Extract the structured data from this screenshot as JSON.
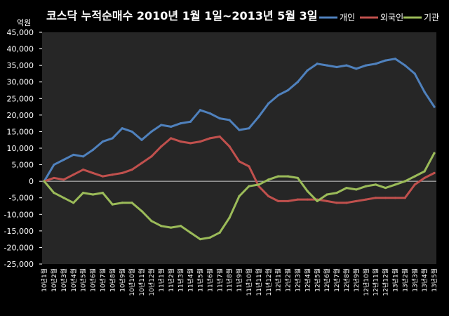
{
  "chart_data": {
    "type": "line",
    "title": "코스닥  누적순매수 2010년 1월 1일~2013년 5월 3일",
    "ylabel": "억원",
    "xlabel": "",
    "ylim": [
      -25000,
      45000
    ],
    "yticks": [
      -25000,
      -20000,
      -15000,
      -10000,
      -5000,
      0,
      5000,
      10000,
      15000,
      20000,
      25000,
      30000,
      35000,
      40000,
      45000
    ],
    "ytick_labels": [
      "-25,000",
      "-20,000",
      "-15,000",
      "-10,000",
      "-5,000",
      "0",
      "5,000",
      "10,000",
      "15,000",
      "20,000",
      "25,000",
      "30,000",
      "35,000",
      "40,000",
      "45,000"
    ],
    "legend_position": "top-right",
    "grid": false,
    "background": "#000000",
    "categories": [
      "10년1월",
      "10년2월",
      "10년3월",
      "10년4월",
      "10년5월",
      "10년6월",
      "10년7월",
      "10년8월",
      "10년9월",
      "10년10월",
      "10년11월",
      "10년12월",
      "11년1월",
      "11년2월",
      "11년3월",
      "11년4월",
      "11년5월",
      "11년6월",
      "11년7월",
      "11년8월",
      "11년9월",
      "11년10월",
      "11년11월",
      "11년12월",
      "12년1월",
      "12년2월",
      "12년3월",
      "12년4월",
      "12년5월",
      "12년6월",
      "12년7월",
      "12년8월",
      "12년9월",
      "12년10월",
      "12년11월",
      "12년12월",
      "13년1월",
      "13년2월",
      "13년3월",
      "13년4월",
      "13년5월"
    ],
    "series": [
      {
        "name": "개인",
        "color": "#4F81BD",
        "values": [
          0,
          5000,
          6500,
          8000,
          7500,
          9500,
          12000,
          13000,
          16000,
          15000,
          12500,
          15000,
          17000,
          16500,
          17500,
          18000,
          21500,
          20500,
          19000,
          18500,
          15500,
          16000,
          19500,
          23500,
          26000,
          27500,
          30000,
          33500,
          35500,
          35000,
          34500,
          35000,
          34000,
          35000,
          35500,
          36500,
          37000,
          35000,
          32500,
          27000,
          22500
        ]
      },
      {
        "name": "외국인",
        "color": "#C0504D",
        "values": [
          0,
          1000,
          500,
          2000,
          3500,
          2500,
          1500,
          2000,
          2500,
          3500,
          5500,
          7500,
          10500,
          13000,
          12000,
          11500,
          12000,
          13000,
          13500,
          10500,
          6000,
          4500,
          -1500,
          -4500,
          -6000,
          -6000,
          -5500,
          -5500,
          -5500,
          -6000,
          -6500,
          -6500,
          -6000,
          -5500,
          -5000,
          -5000,
          -5000,
          -5000,
          -1000,
          1000,
          2500
        ]
      },
      {
        "name": "기관",
        "color": "#9BBB59",
        "values": [
          0,
          -3500,
          -5000,
          -6500,
          -3500,
          -4000,
          -3500,
          -7000,
          -6500,
          -6500,
          -9000,
          -12000,
          -13500,
          -14000,
          -13500,
          -15500,
          -17500,
          -17000,
          -15500,
          -11000,
          -4500,
          -1500,
          -1000,
          500,
          1500,
          1500,
          1000,
          -3000,
          -6000,
          -4000,
          -3500,
          -2000,
          -2500,
          -1500,
          -1000,
          -2000,
          -1000,
          0,
          1500,
          3000,
          8500
        ]
      }
    ]
  }
}
